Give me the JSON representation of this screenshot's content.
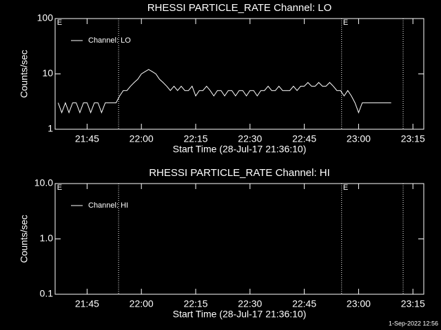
{
  "chart_data": [
    {
      "type": "line",
      "title": "RHESSI PARTICLE_RATE Channel: LO",
      "xlabel": "Start Time (28-Jul-17 21:36:10)",
      "ylabel": "Counts/sec",
      "log_y": true,
      "ylim": [
        1,
        100
      ],
      "yticks": [
        1,
        10,
        100
      ],
      "xlim": [
        1296.17,
        1398
      ],
      "xticks": [
        {
          "value": 1305,
          "label": "21:45"
        },
        {
          "value": 1320,
          "label": "22:00"
        },
        {
          "value": 1335,
          "label": "22:15"
        },
        {
          "value": 1350,
          "label": "22:30"
        },
        {
          "value": 1365,
          "label": "22:45"
        },
        {
          "value": 1380,
          "label": "23:00"
        },
        {
          "value": 1395,
          "label": "23:15"
        }
      ],
      "vlines": [
        1313.7,
        1375.3,
        1392.3
      ],
      "annotations": [
        {
          "text": "E",
          "x": 1296.7
        },
        {
          "text": "E",
          "x": 1375.7
        }
      ],
      "legend": "upper left",
      "x": [
        1297,
        1298,
        1299,
        1300,
        1301,
        1302,
        1303,
        1304,
        1305,
        1306,
        1307,
        1308,
        1309,
        1310,
        1311,
        1312,
        1313,
        1314,
        1315,
        1316,
        1317,
        1318,
        1319,
        1320,
        1321,
        1322,
        1323,
        1324,
        1325,
        1326,
        1327,
        1328,
        1329,
        1330,
        1331,
        1332,
        1333,
        1334,
        1335,
        1336,
        1337,
        1338,
        1339,
        1340,
        1341,
        1342,
        1343,
        1344,
        1345,
        1346,
        1347,
        1348,
        1349,
        1350,
        1351,
        1352,
        1353,
        1354,
        1355,
        1356,
        1357,
        1358,
        1359,
        1360,
        1361,
        1362,
        1363,
        1364,
        1365,
        1366,
        1367,
        1368,
        1369,
        1370,
        1371,
        1372,
        1373,
        1374,
        1375,
        1376,
        1377,
        1378,
        1379,
        1380,
        1381,
        1382,
        1383,
        1384,
        1385,
        1386,
        1387,
        1388,
        1389
      ],
      "series": [
        {
          "name": "Channel: LO",
          "color": "#ffffff",
          "values": [
            3,
            2,
            3,
            2,
            3,
            3,
            2,
            3,
            3,
            2,
            3,
            3,
            2,
            3,
            3,
            3,
            3,
            4,
            5,
            5,
            6,
            7,
            8,
            10,
            11,
            12,
            11,
            10,
            8,
            7,
            6,
            5,
            6,
            5,
            6,
            5,
            5,
            6,
            4,
            5,
            5,
            6,
            5,
            4,
            5,
            5,
            4,
            5,
            5,
            4,
            5,
            5,
            4,
            5,
            5,
            4,
            5,
            5,
            6,
            5,
            5,
            6,
            5,
            5,
            5,
            6,
            5,
            6,
            6,
            7,
            6,
            6,
            7,
            6,
            6,
            7,
            6,
            5,
            5,
            4,
            5,
            4,
            3,
            2,
            3,
            3,
            3,
            3,
            3,
            3,
            3,
            3,
            3
          ]
        }
      ]
    },
    {
      "type": "line",
      "title": "RHESSI PARTICLE_RATE Channel: HI",
      "xlabel": "Start Time (28-Jul-17 21:36:10)",
      "ylabel": "Counts/sec",
      "log_y": true,
      "ylim": [
        0.1,
        10
      ],
      "yticks": [
        {
          "value": 0.1,
          "label": "0.1"
        },
        {
          "value": 1,
          "label": "1.0"
        },
        {
          "value": 10,
          "label": "10.0"
        }
      ],
      "xlim": [
        1296.17,
        1398
      ],
      "xticks": [
        {
          "value": 1305,
          "label": "21:45"
        },
        {
          "value": 1320,
          "label": "22:00"
        },
        {
          "value": 1335,
          "label": "22:15"
        },
        {
          "value": 1350,
          "label": "22:30"
        },
        {
          "value": 1365,
          "label": "22:45"
        },
        {
          "value": 1380,
          "label": "23:00"
        },
        {
          "value": 1395,
          "label": "23:15"
        }
      ],
      "vlines": [
        1313.7,
        1375.3,
        1392.3
      ],
      "annotations": [
        {
          "text": "E",
          "x": 1296.7
        },
        {
          "text": "E",
          "x": 1375.7
        }
      ],
      "legend": "upper left",
      "x": [],
      "series": [
        {
          "name": "Channel: HI",
          "color": "#ffffff",
          "values": []
        }
      ]
    }
  ],
  "footer": "1-Sep-2022 12:56"
}
